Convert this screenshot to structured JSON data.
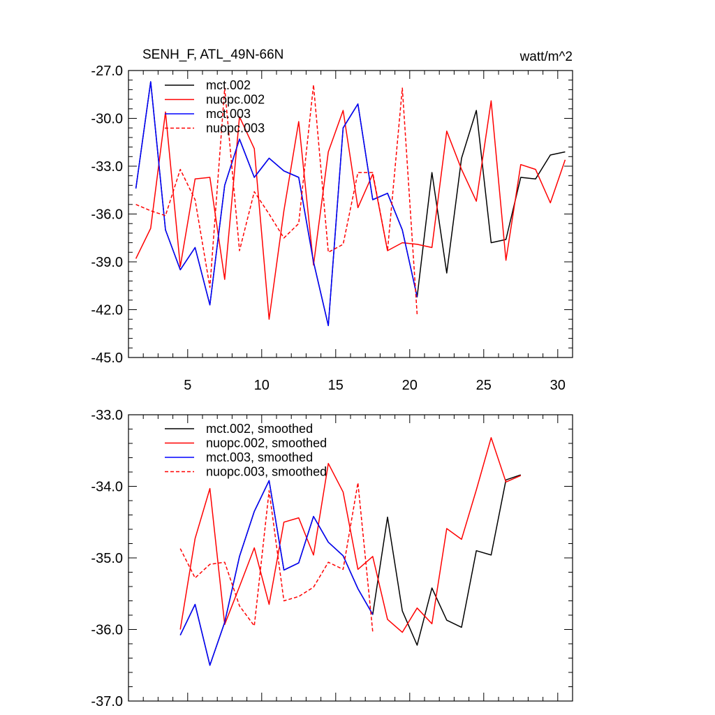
{
  "chart_data": [
    {
      "type": "line",
      "title": "SENH_F, ATL_49N-66N",
      "units": "watt/m^2",
      "xlabel": "",
      "ylabel": "",
      "xlim": [
        1,
        31
      ],
      "ylim": [
        -45,
        -27
      ],
      "xticks": [
        5,
        10,
        15,
        20,
        25,
        30
      ],
      "xtick_labels": [
        "5",
        "10",
        "15",
        "20",
        "25",
        "30"
      ],
      "yticks": [
        -45,
        -42,
        -39,
        -36,
        -33,
        -30,
        -27
      ],
      "ytick_labels": [
        "-45.0",
        "-42.0",
        "-39.0",
        "-36.0",
        "-33.0",
        "-30.0",
        "-27.0"
      ],
      "legend_position": "top-left",
      "series": [
        {
          "name": "mct.002",
          "color": "#000000",
          "dash": "solid",
          "x": [
            1.5,
            2.5,
            3.5,
            4.5,
            5.5,
            6.5,
            7.5,
            8.5,
            9.5,
            10.5,
            11.5,
            12.5,
            13.5,
            14.5,
            15.5,
            16.5,
            17.5,
            18.5,
            19.5,
            20.5,
            21.5,
            22.5,
            23.5,
            24.5,
            25.5,
            26.5,
            27.5,
            28.5,
            29.5,
            30.5
          ],
          "values": [
            -34.4,
            -27.7,
            -37.0,
            -39.5,
            -38.1,
            -41.7,
            -34.2,
            -31.3,
            -33.7,
            -32.5,
            -33.3,
            -33.7,
            -39.0,
            -43.0,
            -30.6,
            -29.1,
            -35.1,
            -34.7,
            -37.0,
            -41.2,
            -33.4,
            -39.7,
            -32.5,
            -29.5,
            -37.8,
            -37.6,
            -33.7,
            -33.8,
            -32.3,
            -32.1
          ]
        },
        {
          "name": "nuopc.002",
          "color": "#ff0000",
          "dash": "solid",
          "x": [
            1.5,
            2.5,
            3.5,
            4.5,
            5.5,
            6.5,
            7.5,
            8.5,
            9.5,
            10.5,
            11.5,
            12.5,
            13.5,
            14.5,
            15.5,
            16.5,
            17.5,
            18.5,
            19.5,
            20.5,
            21.5,
            22.5,
            23.5,
            24.5,
            25.5,
            26.5,
            27.5,
            28.5,
            29.5,
            30.5
          ],
          "values": [
            -38.8,
            -36.9,
            -29.6,
            -39.3,
            -33.8,
            -33.7,
            -40.1,
            -29.9,
            -31.9,
            -42.6,
            -35.8,
            -30.2,
            -39.2,
            -32.1,
            -29.5,
            -35.6,
            -33.5,
            -38.3,
            -37.8,
            -37.9,
            -38.1,
            -30.8,
            -33.2,
            -35.2,
            -28.9,
            -38.9,
            -32.9,
            -33.2,
            -35.3,
            -32.6
          ]
        },
        {
          "name": "mct.003",
          "color": "#0000ff",
          "dash": "solid",
          "x": [
            1.5,
            2.5,
            3.5,
            4.5,
            5.5,
            6.5,
            7.5,
            8.5,
            9.5,
            10.5,
            11.5,
            12.5,
            13.5,
            14.5,
            15.5,
            16.5,
            17.5,
            18.5,
            19.5,
            20.5
          ],
          "values": [
            -34.4,
            -27.7,
            -37.0,
            -39.5,
            -38.1,
            -41.7,
            -34.2,
            -31.3,
            -33.7,
            -32.5,
            -33.3,
            -33.7,
            -39.0,
            -43.0,
            -30.6,
            -29.1,
            -35.1,
            -34.7,
            -37.0,
            -41.2
          ]
        },
        {
          "name": "nuopc.003",
          "color": "#ff0000",
          "dash": "dashed",
          "x": [
            1.5,
            2.5,
            3.5,
            4.5,
            5.5,
            6.5,
            7.5,
            8.5,
            9.5,
            10.5,
            11.5,
            12.5,
            13.5,
            14.5,
            15.5,
            16.5,
            17.5,
            18.5,
            19.5,
            20.5
          ],
          "values": [
            -35.4,
            -35.8,
            -36.1,
            -33.2,
            -35.1,
            -40.6,
            -28.1,
            -38.3,
            -34.6,
            -36.0,
            -37.5,
            -36.6,
            -27.9,
            -38.4,
            -37.9,
            -33.4,
            -33.4,
            -38.3,
            -28.1,
            -42.3
          ]
        }
      ]
    },
    {
      "type": "line",
      "title": "",
      "units": "",
      "xlabel": "",
      "ylabel": "",
      "xlim": [
        1,
        31
      ],
      "ylim": [
        -37,
        -33
      ],
      "xticks": [
        5,
        10,
        15,
        20,
        25,
        30
      ],
      "xtick_labels": [],
      "yticks": [
        -37,
        -36,
        -35,
        -34,
        -33
      ],
      "ytick_labels": [
        "-37.0",
        "-36.0",
        "-35.0",
        "-34.0",
        "-33.0"
      ],
      "legend_position": "top-left",
      "series": [
        {
          "name": "mct.002, smoothed",
          "color": "#000000",
          "dash": "solid",
          "x": [
            4.5,
            5.5,
            6.5,
            7.5,
            8.5,
            9.5,
            10.5,
            11.5,
            12.5,
            13.5,
            14.5,
            15.5,
            16.5,
            17.5,
            18.5,
            19.5,
            20.5,
            21.5,
            22.5,
            23.5,
            24.5,
            25.5,
            26.5,
            27.5
          ],
          "values": [
            -36.08,
            -35.65,
            -36.5,
            -35.9,
            -34.98,
            -34.35,
            -33.92,
            -35.17,
            -35.07,
            -34.42,
            -34.78,
            -34.97,
            -35.43,
            -35.79,
            -34.43,
            -35.74,
            -36.22,
            -35.42,
            -35.87,
            -35.97,
            -34.9,
            -34.96,
            -33.91,
            -33.84
          ]
        },
        {
          "name": "nuopc.002, smoothed",
          "color": "#ff0000",
          "dash": "solid",
          "x": [
            4.5,
            5.5,
            6.5,
            7.5,
            8.5,
            9.5,
            10.5,
            11.5,
            12.5,
            13.5,
            14.5,
            15.5,
            16.5,
            17.5,
            18.5,
            19.5,
            20.5,
            21.5,
            22.5,
            23.5,
            24.5,
            25.5,
            26.5,
            27.5
          ],
          "values": [
            -36.0,
            -34.73,
            -34.03,
            -35.93,
            -35.4,
            -34.86,
            -35.65,
            -34.5,
            -34.44,
            -34.96,
            -33.68,
            -34.08,
            -35.16,
            -34.98,
            -35.86,
            -36.04,
            -35.7,
            -35.92,
            -34.59,
            -34.74,
            -34.05,
            -33.32,
            -33.94,
            -33.85
          ]
        },
        {
          "name": "mct.003, smoothed",
          "color": "#0000ff",
          "dash": "solid",
          "x": [
            4.5,
            5.5,
            6.5,
            7.5,
            8.5,
            9.5,
            10.5,
            11.5,
            12.5,
            13.5,
            14.5,
            15.5,
            16.5,
            17.5
          ],
          "values": [
            -36.08,
            -35.65,
            -36.5,
            -35.9,
            -34.98,
            -34.35,
            -33.92,
            -35.17,
            -35.07,
            -34.42,
            -34.78,
            -34.97,
            -35.43,
            -35.79
          ]
        },
        {
          "name": "nuopc.003, smoothed",
          "color": "#ff0000",
          "dash": "dashed",
          "x": [
            4.5,
            5.5,
            6.5,
            7.5,
            8.5,
            9.5,
            10.5,
            11.5,
            12.5,
            13.5,
            14.5,
            15.5,
            16.5,
            17.5
          ],
          "values": [
            -34.87,
            -35.28,
            -35.09,
            -35.06,
            -35.67,
            -35.95,
            -34.06,
            -35.6,
            -35.54,
            -35.41,
            -35.06,
            -35.16,
            -33.95,
            -36.03
          ]
        }
      ]
    }
  ]
}
